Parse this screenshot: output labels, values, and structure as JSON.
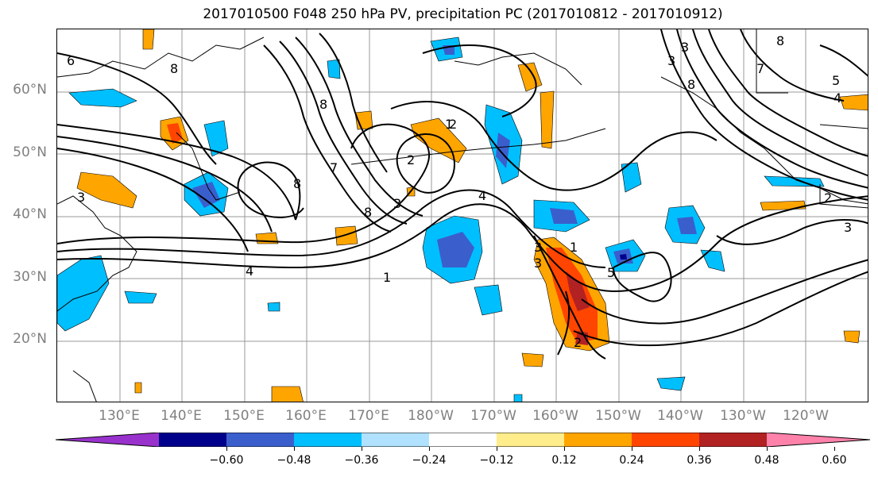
{
  "title": "2017010500 F048 250 hPa PV, precipitation PC (2017010812 - 2017010912)",
  "latitude_labels": [
    "60°N",
    "50°N",
    "40°N",
    "30°N",
    "20°N"
  ],
  "longitude_labels": [
    "130°E",
    "140°E",
    "150°E",
    "160°E",
    "170°E",
    "180°W",
    "170°W",
    "160°W",
    "150°W",
    "140°W",
    "130°W",
    "120°W"
  ],
  "contour_labels": [
    "6",
    "8",
    "8",
    "8",
    "7",
    "3",
    "2",
    "2",
    "8",
    "8",
    "8",
    "7",
    "4",
    "4",
    "4",
    "5",
    "3",
    "3",
    "1",
    "1",
    "3",
    "2",
    "5",
    "3",
    "3",
    "2",
    "1",
    "3"
  ],
  "colorbar": {
    "ticks": [
      "−0.60",
      "−0.48",
      "−0.36",
      "−0.24",
      "−0.12",
      "0.12",
      "0.24",
      "0.36",
      "0.48",
      "0.60"
    ],
    "colors": [
      "#9932cc",
      "#00008b",
      "#3a5fcd",
      "#00bfff",
      "#b0e2ff",
      "#ffffff",
      "#ffec8b",
      "#ffa500",
      "#ff4500",
      "#b22222",
      "#ff82ab"
    ]
  }
}
